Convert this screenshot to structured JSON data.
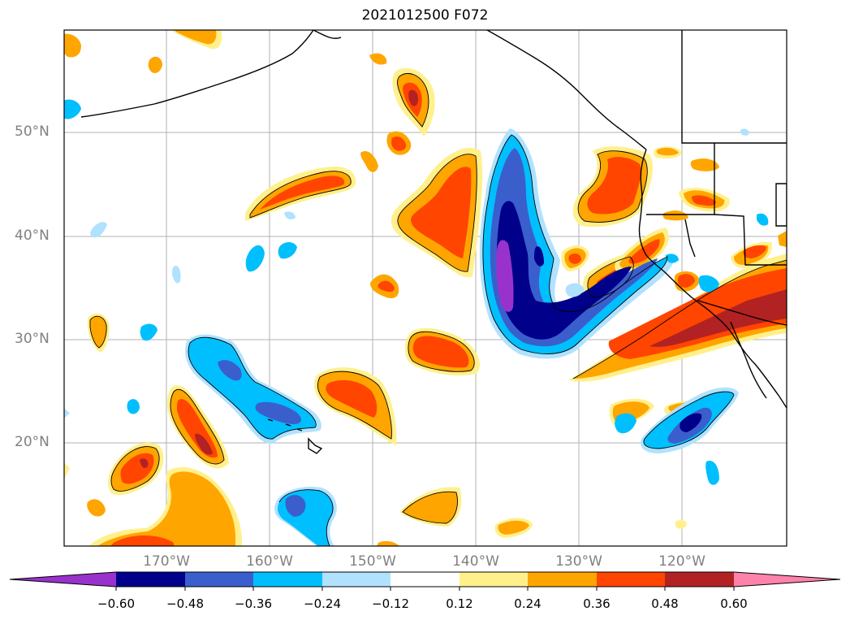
{
  "title": "2021012500 F072",
  "map": {
    "lat_labels": [
      "50°N",
      "40°N",
      "30°N",
      "20°N"
    ],
    "lon_labels": [
      "170°W",
      "160°W",
      "150°W",
      "140°W",
      "130°W",
      "120°W"
    ]
  },
  "colorbar": {
    "ticks": [
      "−0.60",
      "−0.48",
      "−0.36",
      "−0.24",
      "−0.12",
      "0.12",
      "0.24",
      "0.36",
      "0.48",
      "0.60"
    ],
    "colors": [
      "#9932cc",
      "#00008b",
      "#3a5fcd",
      "#00bfff",
      "#b0e2ff",
      "#ffffff",
      "#fff08c",
      "#ffa500",
      "#ff4500",
      "#b22222",
      "#ff82ab"
    ]
  }
}
